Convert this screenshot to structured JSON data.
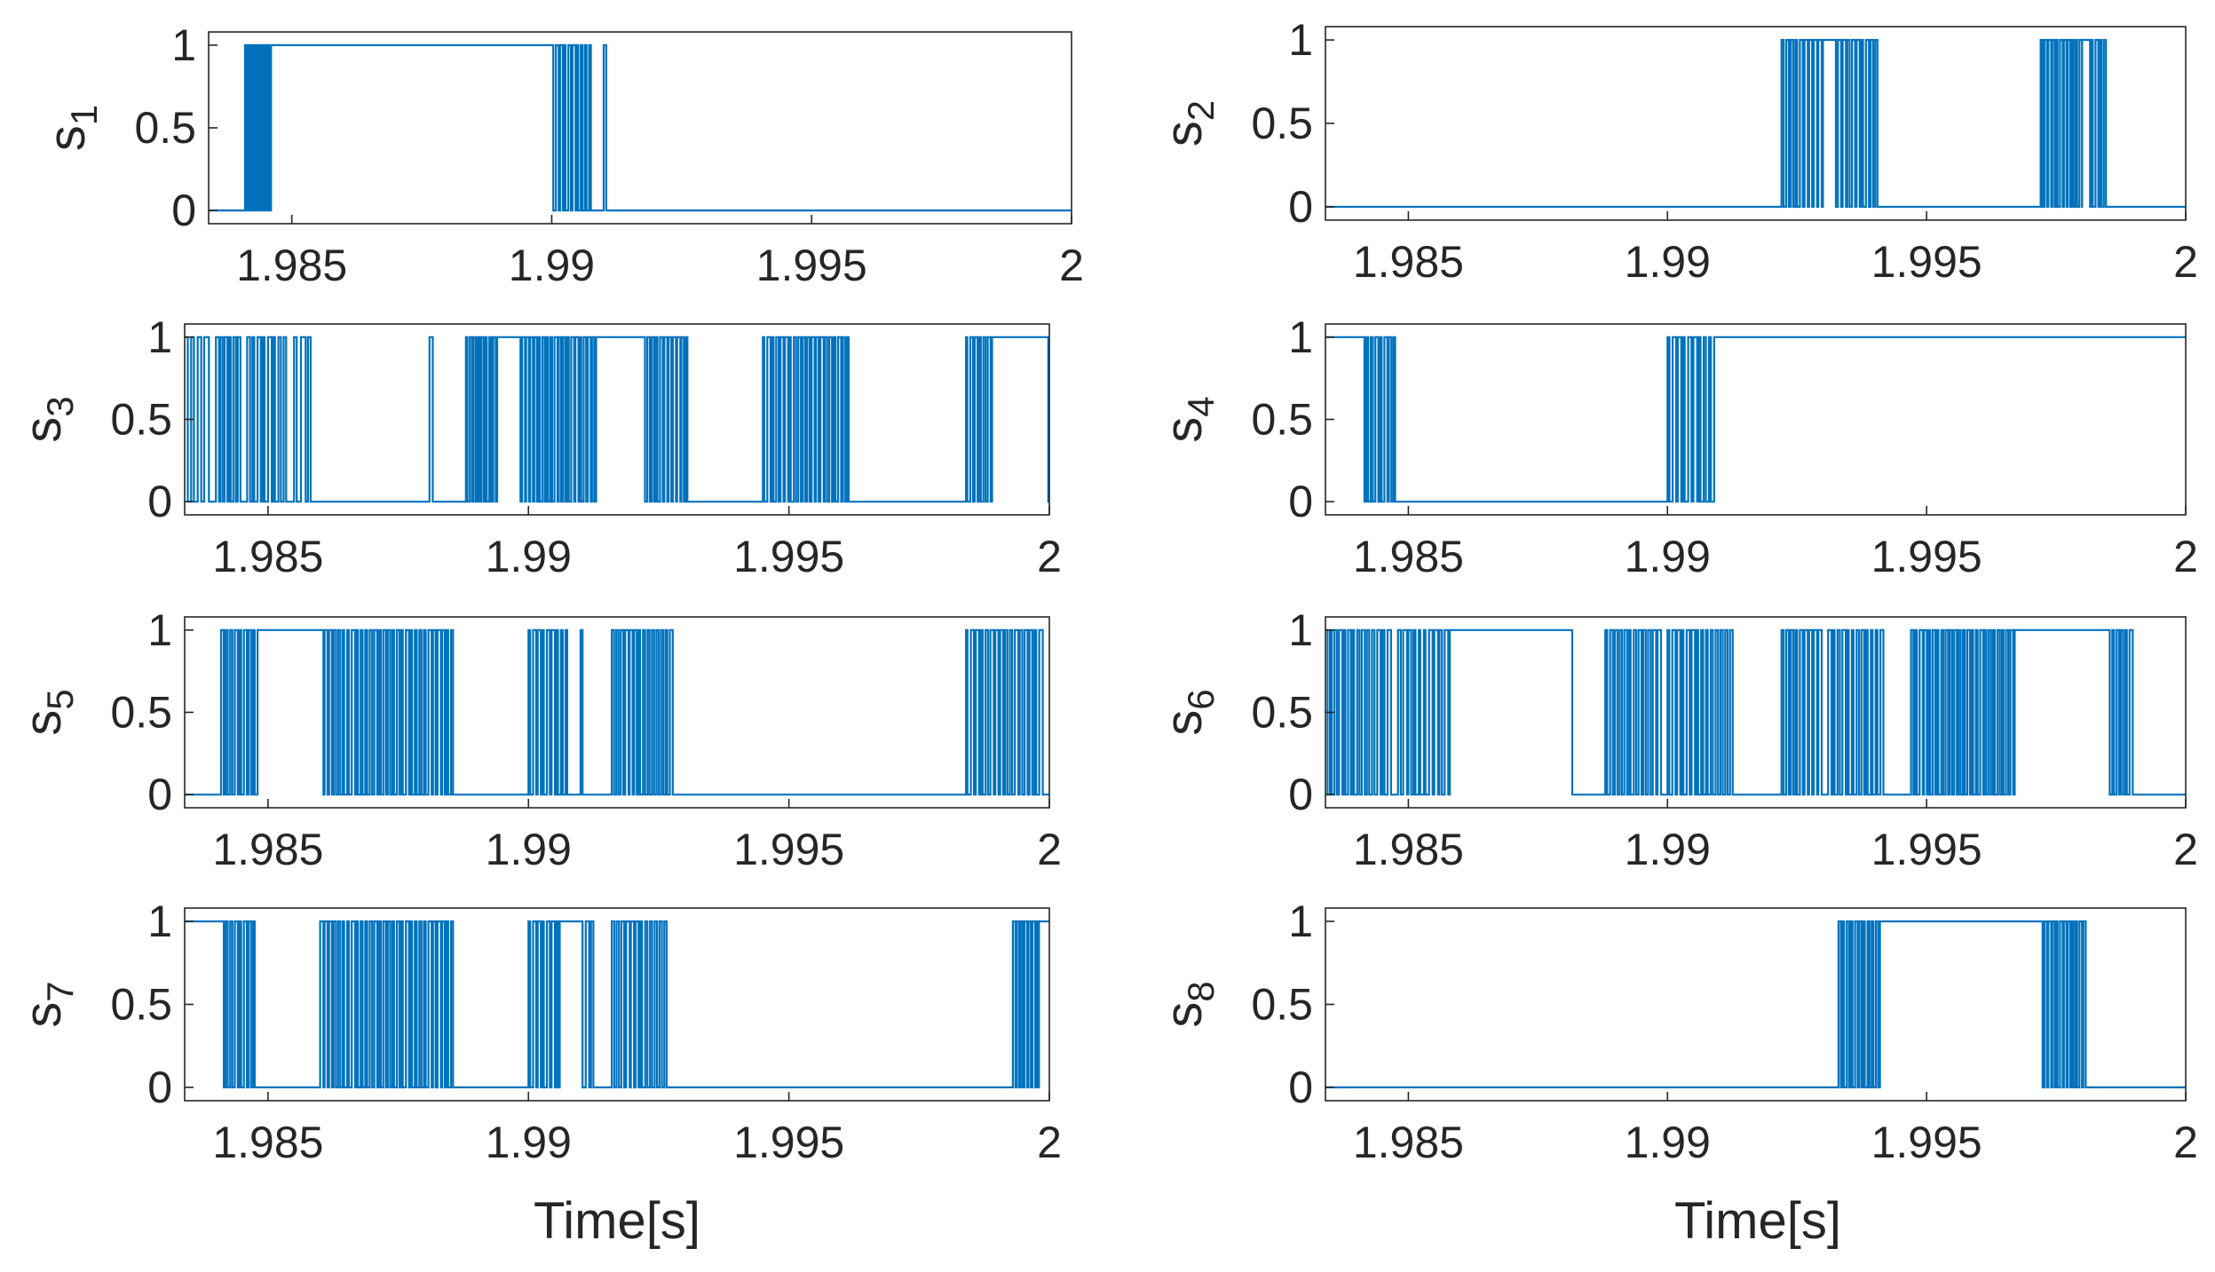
{
  "figure": {
    "xlabel": "Time[s]"
  },
  "style": {
    "line_color": "#0072BD",
    "axes_color": "#262626",
    "background": "#ffffff"
  },
  "chart_data": [
    {
      "type": "line",
      "id": "s1",
      "ylabel_base": "s",
      "ylabel_sub": "1",
      "xlim": [
        1.9834,
        2.0
      ],
      "ylim": [
        -0.08,
        1.08
      ],
      "xticks": [
        1.985,
        1.99,
        1.995,
        2
      ],
      "xtick_labels": [
        "1.985",
        "1.99",
        "1.995",
        "2"
      ],
      "yticks": [
        0,
        0.5,
        1
      ],
      "ytick_labels": [
        "0",
        "0.5",
        "1"
      ],
      "bursts": [
        [
          1.9841,
          1.9846,
          9
        ],
        [
          1.99,
          1.9908,
          10
        ]
      ],
      "highs": [
        [
          1.9846,
          1.99
        ],
        [
          1.991,
          1.99105
        ]
      ]
    },
    {
      "type": "line",
      "id": "s2",
      "ylabel_base": "s",
      "ylabel_sub": "2",
      "xlim": [
        1.9834,
        2.0
      ],
      "ylim": [
        -0.08,
        1.08
      ],
      "xticks": [
        1.985,
        1.99,
        1.995,
        2
      ],
      "xtick_labels": [
        "1.985",
        "1.99",
        "1.995",
        "2"
      ],
      "yticks": [
        0,
        0.5,
        1
      ],
      "ytick_labels": [
        "0",
        "0.5",
        "1"
      ],
      "bursts": [
        [
          1.9922,
          1.993,
          9
        ],
        [
          1.9932,
          1.9941,
          10
        ],
        [
          1.9972,
          1.9981,
          12
        ],
        [
          1.9981,
          1.9985,
          5
        ]
      ],
      "highs": [
        [
          1.993,
          1.9932
        ],
        [
          1.998,
          1.9981
        ]
      ]
    },
    {
      "type": "line",
      "id": "s3",
      "ylabel_base": "s",
      "ylabel_sub": "3",
      "xlim": [
        1.9834,
        2.0
      ],
      "ylim": [
        -0.08,
        1.08
      ],
      "xticks": [
        1.985,
        1.99,
        1.995,
        2
      ],
      "xtick_labels": [
        "1.985",
        "1.99",
        "1.995",
        "2"
      ],
      "yticks": [
        0,
        0.5,
        1
      ],
      "ytick_labels": [
        "0",
        "0.5",
        "1"
      ],
      "bursts": [
        [
          1.9834,
          1.9839,
          4
        ],
        [
          1.984,
          1.9845,
          6
        ],
        [
          1.9846,
          1.9854,
          8
        ],
        [
          1.9855,
          1.9859,
          3
        ],
        [
          1.9881,
          1.9882,
          1
        ],
        [
          1.9888,
          1.9894,
          8
        ],
        [
          1.9898,
          1.9905,
          9
        ],
        [
          1.9905,
          1.9913,
          10
        ],
        [
          1.9922,
          1.9931,
          11
        ],
        [
          1.9945,
          1.9962,
          20
        ],
        [
          1.9984,
          1.9989,
          6
        ],
        [
          1.99995,
          2.0,
          1
        ]
      ],
      "highs": [
        [
          1.9894,
          1.9898
        ],
        [
          1.9913,
          1.9922
        ],
        [
          1.9989,
          1.99995
        ]
      ]
    },
    {
      "type": "line",
      "id": "s4",
      "ylabel_base": "s",
      "ylabel_sub": "4",
      "xlim": [
        1.9834,
        2.0
      ],
      "ylim": [
        -0.08,
        1.08
      ],
      "xticks": [
        1.985,
        1.99,
        1.995,
        2
      ],
      "xtick_labels": [
        "1.985",
        "1.99",
        "1.995",
        "2"
      ],
      "yticks": [
        0,
        0.5,
        1
      ],
      "ytick_labels": [
        "0",
        "0.5",
        "1"
      ],
      "bursts": [
        [
          1.9841,
          1.9848,
          8
        ],
        [
          1.99,
          1.9909,
          9
        ],
        [
          1.991,
          1.99105,
          1
        ]
      ],
      "highs": [
        [
          1.9834,
          1.9841
        ],
        [
          1.9909,
          2.0
        ]
      ]
    },
    {
      "type": "line",
      "id": "s5",
      "ylabel_base": "s",
      "ylabel_sub": "5",
      "xlim": [
        1.9834,
        2.0
      ],
      "ylim": [
        -0.08,
        1.08
      ],
      "xticks": [
        1.985,
        1.99,
        1.995,
        2
      ],
      "xtick_labels": [
        "1.985",
        "1.99",
        "1.995",
        "2"
      ],
      "yticks": [
        0,
        0.5,
        1
      ],
      "ytick_labels": [
        "0",
        "0.5",
        "1"
      ],
      "bursts": [
        [
          1.9841,
          1.9848,
          8
        ],
        [
          1.986,
          1.9886,
          30
        ],
        [
          1.99,
          1.9908,
          9
        ],
        [
          1.991,
          1.9911,
          1
        ],
        [
          1.9916,
          1.9928,
          14
        ],
        [
          1.9984,
          1.9999,
          16
        ]
      ],
      "highs": [
        [
          1.9848,
          1.986
        ]
      ]
    },
    {
      "type": "line",
      "id": "s6",
      "ylabel_base": "s",
      "ylabel_sub": "6",
      "xlim": [
        1.9834,
        2.0
      ],
      "ylim": [
        -0.08,
        1.08
      ],
      "xticks": [
        1.985,
        1.99,
        1.995,
        2
      ],
      "xtick_labels": [
        "1.985",
        "1.99",
        "1.995",
        "2"
      ],
      "yticks": [
        0,
        0.5,
        1
      ],
      "ytick_labels": [
        "0",
        "0.5",
        "1"
      ],
      "bursts": [
        [
          1.9834,
          1.9841,
          8
        ],
        [
          1.9841,
          1.9847,
          6
        ],
        [
          1.9848,
          1.9858,
          10
        ],
        [
          1.9881,
          1.9882,
          1
        ],
        [
          1.9888,
          1.9899,
          12
        ],
        [
          1.99,
          1.9913,
          14
        ],
        [
          1.9922,
          1.993,
          9
        ],
        [
          1.9931,
          1.9942,
          12
        ],
        [
          1.9947,
          1.9967,
          24
        ],
        [
          1.9985,
          1.999,
          6
        ]
      ],
      "highs": [
        [
          1.9858,
          1.9881
        ],
        [
          1.9967,
          1.9985
        ]
      ]
    },
    {
      "type": "line",
      "id": "s7",
      "ylabel_base": "s",
      "ylabel_sub": "7",
      "xlim": [
        1.9834,
        2.0
      ],
      "ylim": [
        -0.08,
        1.08
      ],
      "xticks": [
        1.985,
        1.99,
        1.995,
        2
      ],
      "xtick_labels": [
        "1.985",
        "1.99",
        "1.995",
        "2"
      ],
      "yticks": [
        0,
        0.5,
        1
      ],
      "ytick_labels": [
        "0",
        "0.5",
        "1"
      ],
      "bursts": [
        [
          1.9841,
          1.9848,
          8
        ],
        [
          1.986,
          1.9886,
          30
        ],
        [
          1.99,
          1.9908,
          9
        ],
        [
          1.991,
          1.9913,
          3
        ],
        [
          1.9916,
          1.9927,
          12
        ],
        [
          1.9993,
          1.9999,
          8
        ]
      ],
      "highs": [
        [
          1.9834,
          1.9841
        ],
        [
          1.9906,
          1.991
        ],
        [
          1.9998,
          2.0
        ]
      ]
    },
    {
      "type": "line",
      "id": "s8",
      "ylabel_base": "s",
      "ylabel_sub": "8",
      "xlim": [
        1.9834,
        2.0
      ],
      "ylim": [
        -0.08,
        1.08
      ],
      "xticks": [
        1.985,
        1.99,
        1.995,
        2
      ],
      "xtick_labels": [
        "1.985",
        "1.99",
        "1.995",
        "2"
      ],
      "yticks": [
        0,
        0.5,
        1
      ],
      "ytick_labels": [
        "0",
        "0.5",
        "1"
      ],
      "bursts": [
        [
          1.9933,
          1.9941,
          10
        ],
        [
          1.9972,
          1.9981,
          12
        ]
      ],
      "highs": [
        [
          1.9941,
          1.9972
        ]
      ]
    }
  ]
}
